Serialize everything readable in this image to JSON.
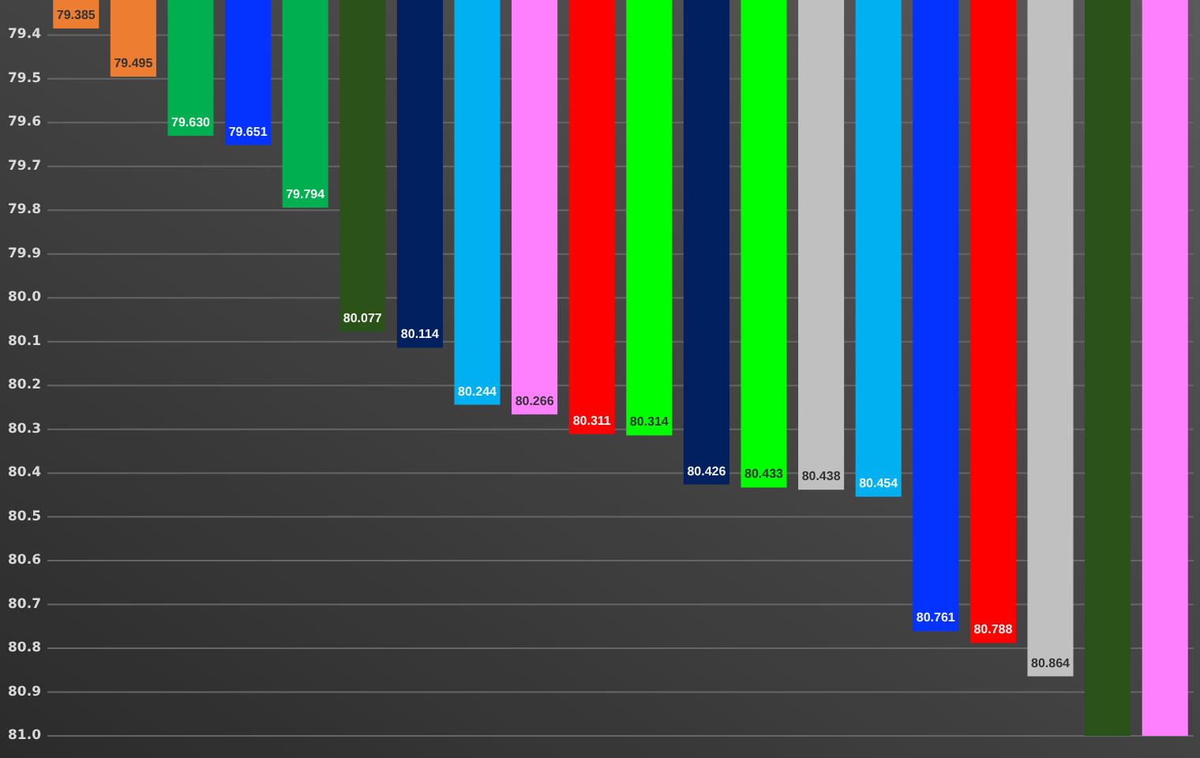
{
  "chart_data": {
    "type": "bar",
    "categories": [
      null,
      null,
      null,
      null,
      null,
      null,
      null,
      null,
      null,
      null,
      null,
      null,
      null,
      null,
      null,
      null,
      null,
      null,
      null,
      null
    ],
    "values": [
      79.385,
      79.495,
      79.63,
      79.651,
      79.794,
      80.077,
      80.114,
      80.244,
      80.266,
      80.311,
      80.314,
      80.426,
      80.433,
      80.438,
      80.454,
      80.761,
      80.788,
      80.864,
      81.0,
      81.0
    ],
    "value_labels": [
      "79.385",
      "79.495",
      "79.630",
      "79.651",
      "79.794",
      "80.077",
      "80.114",
      "80.244",
      "80.266",
      "80.311",
      "80.314",
      "80.426",
      "80.433",
      "80.438",
      "80.454",
      "80.761",
      "80.788",
      "80.864",
      null,
      null
    ],
    "colors": [
      "#ed7d31",
      "#ed7d31",
      "#00b050",
      "#0433ff",
      "#00b050",
      "#2a5219",
      "#002060",
      "#00b0f0",
      "#ff80ff",
      "#ff0000",
      "#00ff00",
      "#002060",
      "#00ff00",
      "#c0c0c0",
      "#00b0f0",
      "#0433ff",
      "#ff0000",
      "#c0c0c0",
      "#2a5219",
      "#ff80ff"
    ],
    "ylim": [
      81.0,
      79.32
    ],
    "yticks": [
      79.4,
      79.5,
      79.6,
      79.7,
      79.8,
      79.9,
      {
        "value": 80.0,
        "label": "80.0"
      },
      80.1,
      80.2,
      80.3,
      80.4,
      80.5,
      80.6,
      80.7,
      80.8,
      80.9,
      {
        "value": 81.0,
        "label": "81.0"
      }
    ],
    "grid": "y",
    "tick_labels": "y"
  }
}
